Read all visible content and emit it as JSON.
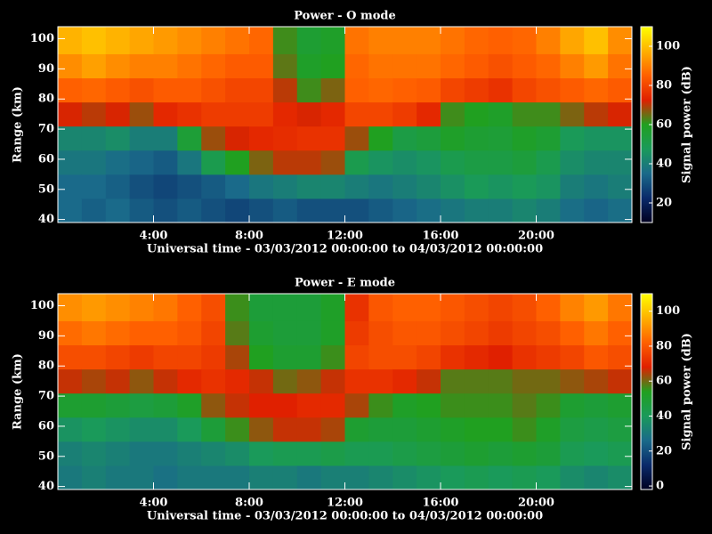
{
  "chart_data": [
    {
      "type": "heatmap",
      "title": "Power - O mode",
      "xlabel": "Universal time - 03/03/2012 00:00:00 to 04/03/2012 00:00:00",
      "ylabel": "Range (km)",
      "colorbar_label": "Signal power (dB)",
      "xlim": [
        0,
        24
      ],
      "xticks": [
        {
          "value": 4,
          "label": "4:00"
        },
        {
          "value": 8,
          "label": "8:00"
        },
        {
          "value": 12,
          "label": "12:00"
        },
        {
          "value": 16,
          "label": "16:00"
        },
        {
          "value": 20,
          "label": "20:00"
        }
      ],
      "ylim": [
        39,
        104
      ],
      "yticks": [
        40,
        50,
        60,
        70,
        80,
        90,
        100
      ],
      "clim": [
        10,
        110
      ],
      "cticks": [
        20,
        40,
        60,
        80,
        100
      ],
      "colormap": [
        "#000020",
        "#0a2a6a",
        "#1a6a8a",
        "#1a9a5a",
        "#20a020",
        "#e02000",
        "#ff6000",
        "#ffb000",
        "#ffff00"
      ],
      "x_edges": [
        0,
        1,
        2,
        3,
        4,
        5,
        6,
        7,
        8,
        9,
        10,
        11,
        12,
        13,
        14,
        15,
        16,
        17,
        18,
        19,
        20,
        21,
        22,
        23,
        24
      ],
      "y_edges": [
        39,
        47,
        55,
        63,
        71,
        79,
        87,
        95,
        104
      ],
      "z": [
        [
          35,
          35,
          38,
          42,
          72,
          85,
          92,
          98
        ],
        [
          33,
          35,
          38,
          42,
          70,
          86,
          95,
          100
        ],
        [
          35,
          33,
          36,
          44,
          72,
          84,
          92,
          98
        ],
        [
          32,
          30,
          34,
          40,
          68,
          82,
          90,
          96
        ],
        [
          30,
          28,
          32,
          40,
          74,
          84,
          90,
          94
        ],
        [
          32,
          30,
          38,
          55,
          76,
          84,
          88,
          92
        ],
        [
          30,
          32,
          50,
          68,
          78,
          82,
          86,
          90
        ],
        [
          28,
          35,
          60,
          72,
          78,
          80,
          84,
          88
        ],
        [
          30,
          38,
          66,
          74,
          78,
          80,
          84,
          86
        ],
        [
          32,
          40,
          70,
          75,
          74,
          70,
          64,
          62
        ],
        [
          30,
          42,
          70,
          76,
          72,
          62,
          58,
          56
        ],
        [
          30,
          42,
          68,
          76,
          74,
          66,
          60,
          58
        ],
        [
          30,
          40,
          50,
          68,
          80,
          85,
          86,
          88
        ],
        [
          32,
          38,
          46,
          60,
          80,
          86,
          88,
          90
        ],
        [
          34,
          40,
          44,
          52,
          78,
          85,
          88,
          90
        ],
        [
          36,
          42,
          46,
          54,
          74,
          84,
          88,
          90
        ],
        [
          38,
          45,
          50,
          58,
          62,
          80,
          86,
          88
        ],
        [
          40,
          48,
          52,
          56,
          60,
          78,
          84,
          86
        ],
        [
          40,
          46,
          52,
          55,
          58,
          76,
          82,
          85
        ],
        [
          42,
          48,
          54,
          58,
          62,
          80,
          84,
          86
        ],
        [
          40,
          46,
          50,
          56,
          62,
          82,
          86,
          90
        ],
        [
          36,
          40,
          44,
          48,
          66,
          84,
          90,
          96
        ],
        [
          34,
          38,
          42,
          46,
          70,
          86,
          94,
          100
        ],
        [
          36,
          40,
          42,
          46,
          72,
          84,
          88,
          92
        ]
      ]
    },
    {
      "type": "heatmap",
      "title": "Power - E mode",
      "xlabel": "Universal time - 03/03/2012 00:00:00 to 04/03/2012 00:00:00",
      "ylabel": "Range (km)",
      "colorbar_label": "Signal power (dB)",
      "xlim": [
        0,
        24
      ],
      "xticks": [
        {
          "value": 4,
          "label": "4:00"
        },
        {
          "value": 8,
          "label": "8:00"
        },
        {
          "value": 12,
          "label": "12:00"
        },
        {
          "value": 16,
          "label": "16:00"
        },
        {
          "value": 20,
          "label": "20:00"
        }
      ],
      "ylim": [
        39,
        104
      ],
      "yticks": [
        40,
        50,
        60,
        70,
        80,
        90,
        100
      ],
      "clim": [
        -2,
        110
      ],
      "cticks": [
        0,
        20,
        40,
        60,
        80,
        100
      ],
      "colormap": [
        "#000020",
        "#0a2a6a",
        "#1a6a8a",
        "#1a9a5a",
        "#20a020",
        "#e02000",
        "#ff6000",
        "#ffb000",
        "#ffff00"
      ],
      "x_edges": [
        0,
        1,
        2,
        3,
        4,
        5,
        6,
        7,
        8,
        9,
        10,
        11,
        12,
        13,
        14,
        15,
        16,
        17,
        18,
        19,
        20,
        21,
        22,
        23,
        24
      ],
      "y_edges": [
        39,
        47,
        55,
        63,
        71,
        79,
        87,
        95,
        104
      ],
      "z": [
        [
          30,
          32,
          38,
          50,
          66,
          78,
          84,
          90
        ],
        [
          32,
          34,
          40,
          50,
          64,
          78,
          86,
          92
        ],
        [
          30,
          32,
          38,
          48,
          66,
          76,
          84,
          90
        ],
        [
          30,
          30,
          36,
          46,
          62,
          74,
          82,
          88
        ],
        [
          28,
          30,
          36,
          48,
          66,
          76,
          82,
          86
        ],
        [
          30,
          32,
          40,
          52,
          70,
          76,
          80,
          82
        ],
        [
          30,
          34,
          48,
          62,
          72,
          74,
          76,
          78
        ],
        [
          30,
          36,
          56,
          66,
          70,
          64,
          58,
          56
        ],
        [
          32,
          40,
          62,
          68,
          66,
          54,
          50,
          48
        ],
        [
          32,
          42,
          66,
          68,
          60,
          50,
          48,
          48
        ],
        [
          30,
          42,
          66,
          70,
          62,
          50,
          48,
          48
        ],
        [
          32,
          44,
          64,
          70,
          66,
          56,
          52,
          52
        ],
        [
          32,
          42,
          50,
          64,
          72,
          76,
          74,
          72
        ],
        [
          34,
          42,
          48,
          56,
          72,
          78,
          78,
          80
        ],
        [
          36,
          44,
          48,
          52,
          70,
          78,
          80,
          82
        ],
        [
          38,
          46,
          50,
          54,
          66,
          76,
          80,
          82
        ],
        [
          40,
          48,
          52,
          56,
          58,
          72,
          78,
          80
        ],
        [
          42,
          50,
          54,
          56,
          58,
          70,
          76,
          78
        ],
        [
          40,
          48,
          54,
          56,
          58,
          68,
          74,
          76
        ],
        [
          42,
          50,
          56,
          58,
          60,
          72,
          76,
          78
        ],
        [
          40,
          48,
          52,
          56,
          60,
          74,
          78,
          82
        ],
        [
          36,
          42,
          46,
          50,
          62,
          76,
          82,
          88
        ],
        [
          34,
          40,
          44,
          48,
          64,
          80,
          86,
          92
        ],
        [
          36,
          42,
          46,
          50,
          66,
          78,
          82,
          86
        ]
      ]
    }
  ]
}
